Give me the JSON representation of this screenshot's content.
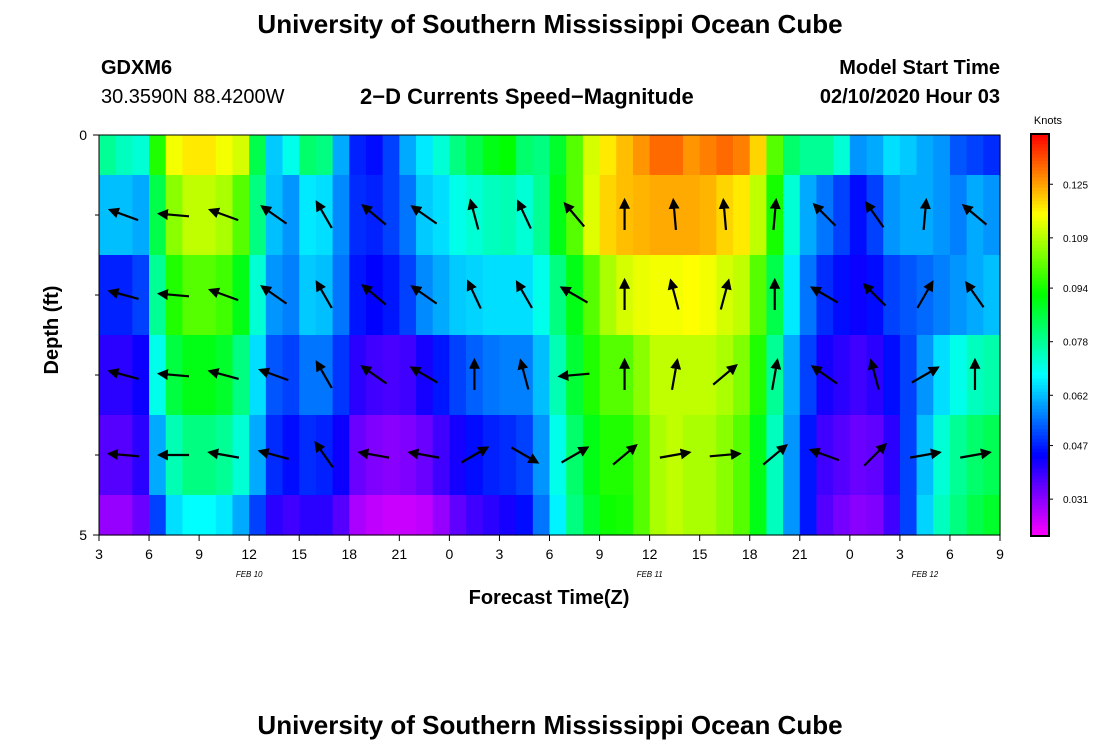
{
  "page": {
    "title_top": "University of Southern Mississippi Ocean Cube",
    "title_bottom": "University of Southern Mississippi Ocean Cube",
    "station": "GDXM6",
    "location": "30.3590N 88.4200W",
    "subtitle": "2−D Currents Speed−Magnitude",
    "model_label": "Model Start Time",
    "model_time": "02/10/2020 Hour 03"
  },
  "chart_data": {
    "type": "heatmap",
    "title": "2-D Currents Speed-Magnitude",
    "xlabel": "Forecast Time(Z)",
    "ylabel": "Depth (ft)",
    "x_tick_labels": [
      "3",
      "6",
      "9",
      "12",
      "15",
      "18",
      "21",
      "0",
      "3",
      "6",
      "9",
      "12",
      "15",
      "18",
      "21",
      "0",
      "3",
      "6",
      "9"
    ],
    "x_hours_range": [
      0,
      54
    ],
    "date_labels": [
      {
        "text": "FEB 10",
        "hour": 9
      },
      {
        "text": "FEB 11",
        "hour": 33
      },
      {
        "text": "FEB 12",
        "hour": 49.5
      }
    ],
    "y_range": [
      0,
      5
    ],
    "y_tick_labels": [
      "0",
      "5"
    ],
    "y_minor_ticks": [
      1,
      2,
      3,
      4
    ],
    "colorbar": {
      "unit": "Knots",
      "ticks": [
        "0.031",
        "0.047",
        "0.062",
        "0.078",
        "0.094",
        "0.109",
        "0.125"
      ],
      "range": [
        0.02,
        0.14
      ]
    },
    "column_hours": [
      0,
      1,
      2,
      3,
      4,
      5,
      6,
      7,
      8,
      9,
      10,
      11,
      12,
      13,
      14,
      15,
      16,
      17,
      18,
      19,
      20,
      21,
      22,
      23,
      24,
      25,
      26,
      27,
      28,
      29,
      30,
      31,
      32,
      33,
      34,
      35,
      36,
      37,
      38,
      39,
      40,
      41,
      42,
      43,
      44,
      45,
      46,
      47,
      48,
      49,
      50,
      51,
      52,
      53,
      54
    ],
    "rows": [
      {
        "depth": [
          0.0,
          0.5
        ],
        "values": [
          0.078,
          0.074,
          0.072,
          0.095,
          0.115,
          0.118,
          0.118,
          0.115,
          0.112,
          0.085,
          0.063,
          0.07,
          0.082,
          0.08,
          0.06,
          0.047,
          0.045,
          0.05,
          0.06,
          0.066,
          0.072,
          0.08,
          0.085,
          0.09,
          0.092,
          0.082,
          0.08,
          0.088,
          0.1,
          0.112,
          0.118,
          0.122,
          0.126,
          0.13,
          0.13,
          0.126,
          0.128,
          0.13,
          0.128,
          0.12,
          0.1,
          0.082,
          0.078,
          0.078,
          0.072,
          0.058,
          0.06,
          0.065,
          0.063,
          0.06,
          0.058,
          0.052,
          0.05,
          0.048,
          0.063
        ]
      },
      {
        "depth": [
          0.5,
          1.5
        ],
        "values": [
          0.062,
          0.062,
          0.06,
          0.085,
          0.105,
          0.11,
          0.11,
          0.108,
          0.1,
          0.08,
          0.062,
          0.058,
          0.066,
          0.065,
          0.057,
          0.048,
          0.047,
          0.05,
          0.055,
          0.063,
          0.065,
          0.07,
          0.072,
          0.074,
          0.075,
          0.072,
          0.078,
          0.09,
          0.1,
          0.113,
          0.12,
          0.122,
          0.123,
          0.124,
          0.124,
          0.124,
          0.123,
          0.12,
          0.118,
          0.11,
          0.094,
          0.072,
          0.06,
          0.055,
          0.05,
          0.045,
          0.05,
          0.058,
          0.06,
          0.06,
          0.058,
          0.056,
          0.06,
          0.058,
          0.062
        ]
      },
      {
        "depth": [
          1.5,
          2.5
        ],
        "values": [
          0.047,
          0.047,
          0.05,
          0.078,
          0.095,
          0.1,
          0.1,
          0.098,
          0.09,
          0.072,
          0.058,
          0.056,
          0.063,
          0.062,
          0.055,
          0.046,
          0.044,
          0.046,
          0.05,
          0.057,
          0.06,
          0.063,
          0.064,
          0.065,
          0.065,
          0.065,
          0.07,
          0.08,
          0.09,
          0.1,
          0.108,
          0.112,
          0.114,
          0.115,
          0.115,
          0.116,
          0.115,
          0.112,
          0.11,
          0.1,
          0.085,
          0.066,
          0.055,
          0.048,
          0.045,
          0.043,
          0.045,
          0.05,
          0.052,
          0.054,
          0.056,
          0.058,
          0.06,
          0.062,
          0.064
        ]
      },
      {
        "depth": [
          2.5,
          3.5
        ],
        "values": [
          0.04,
          0.04,
          0.043,
          0.07,
          0.086,
          0.09,
          0.09,
          0.088,
          0.08,
          0.065,
          0.052,
          0.05,
          0.055,
          0.055,
          0.049,
          0.04,
          0.038,
          0.037,
          0.038,
          0.042,
          0.046,
          0.05,
          0.053,
          0.055,
          0.056,
          0.056,
          0.062,
          0.075,
          0.087,
          0.095,
          0.1,
          0.1,
          0.105,
          0.11,
          0.11,
          0.11,
          0.11,
          0.108,
          0.104,
          0.095,
          0.078,
          0.06,
          0.05,
          0.042,
          0.04,
          0.038,
          0.04,
          0.045,
          0.05,
          0.058,
          0.065,
          0.07,
          0.074,
          0.076,
          0.078
        ]
      },
      {
        "depth": [
          3.5,
          4.5
        ],
        "values": [
          0.036,
          0.036,
          0.04,
          0.06,
          0.075,
          0.08,
          0.08,
          0.078,
          0.072,
          0.06,
          0.048,
          0.045,
          0.048,
          0.047,
          0.043,
          0.034,
          0.032,
          0.031,
          0.032,
          0.034,
          0.038,
          0.042,
          0.045,
          0.047,
          0.048,
          0.05,
          0.058,
          0.07,
          0.082,
          0.09,
          0.095,
          0.095,
          0.1,
          0.108,
          0.11,
          0.108,
          0.108,
          0.105,
          0.1,
          0.09,
          0.074,
          0.058,
          0.046,
          0.038,
          0.036,
          0.034,
          0.035,
          0.04,
          0.05,
          0.062,
          0.072,
          0.078,
          0.082,
          0.084,
          0.085
        ]
      },
      {
        "depth": [
          4.5,
          5.0
        ],
        "values": [
          0.03,
          0.03,
          0.034,
          0.05,
          0.065,
          0.068,
          0.068,
          0.066,
          0.06,
          0.05,
          0.04,
          0.038,
          0.04,
          0.04,
          0.036,
          0.028,
          0.026,
          0.025,
          0.025,
          0.026,
          0.03,
          0.035,
          0.038,
          0.04,
          0.042,
          0.045,
          0.055,
          0.067,
          0.08,
          0.088,
          0.093,
          0.094,
          0.1,
          0.108,
          0.11,
          0.108,
          0.108,
          0.105,
          0.1,
          0.09,
          0.074,
          0.058,
          0.046,
          0.036,
          0.033,
          0.031,
          0.032,
          0.038,
          0.05,
          0.064,
          0.074,
          0.08,
          0.085,
          0.088,
          0.09
        ]
      }
    ],
    "vector_columns_hours": [
      1.5,
      4.5,
      7.5,
      10.5,
      13.5,
      16.5,
      19.5,
      22.5,
      25.5,
      28.5,
      31.5,
      34.5,
      37.5,
      40.5,
      43.5,
      46.5,
      49.5,
      52.5
    ],
    "vector_rows": [
      {
        "depth": 1.0,
        "angles_deg": [
          -160,
          -175,
          -160,
          -145,
          -120,
          -140,
          -145,
          -105,
          -115,
          -130,
          -90,
          -95,
          -95,
          -85,
          -135,
          -125,
          -85,
          -140
        ]
      },
      {
        "depth": 2.0,
        "angles_deg": [
          -165,
          -175,
          -160,
          -145,
          -120,
          -140,
          -145,
          -115,
          -120,
          -150,
          -90,
          -105,
          -75,
          -90,
          -150,
          -135,
          -60,
          -125
        ]
      },
      {
        "depth": 3.0,
        "angles_deg": [
          -165,
          -175,
          -165,
          -160,
          -120,
          -145,
          -150,
          -90,
          -105,
          175,
          -90,
          -80,
          -40,
          -80,
          -145,
          -105,
          -30,
          -90
        ]
      },
      {
        "depth": 4.0,
        "angles_deg": [
          -175,
          180,
          -170,
          -165,
          -125,
          -170,
          -170,
          -30,
          30,
          -30,
          -40,
          -10,
          -5,
          -40,
          -160,
          -45,
          -10,
          -10
        ]
      }
    ],
    "notes": "vector angle: screen direction of arrow head, degrees, 0=east, negative=up"
  }
}
